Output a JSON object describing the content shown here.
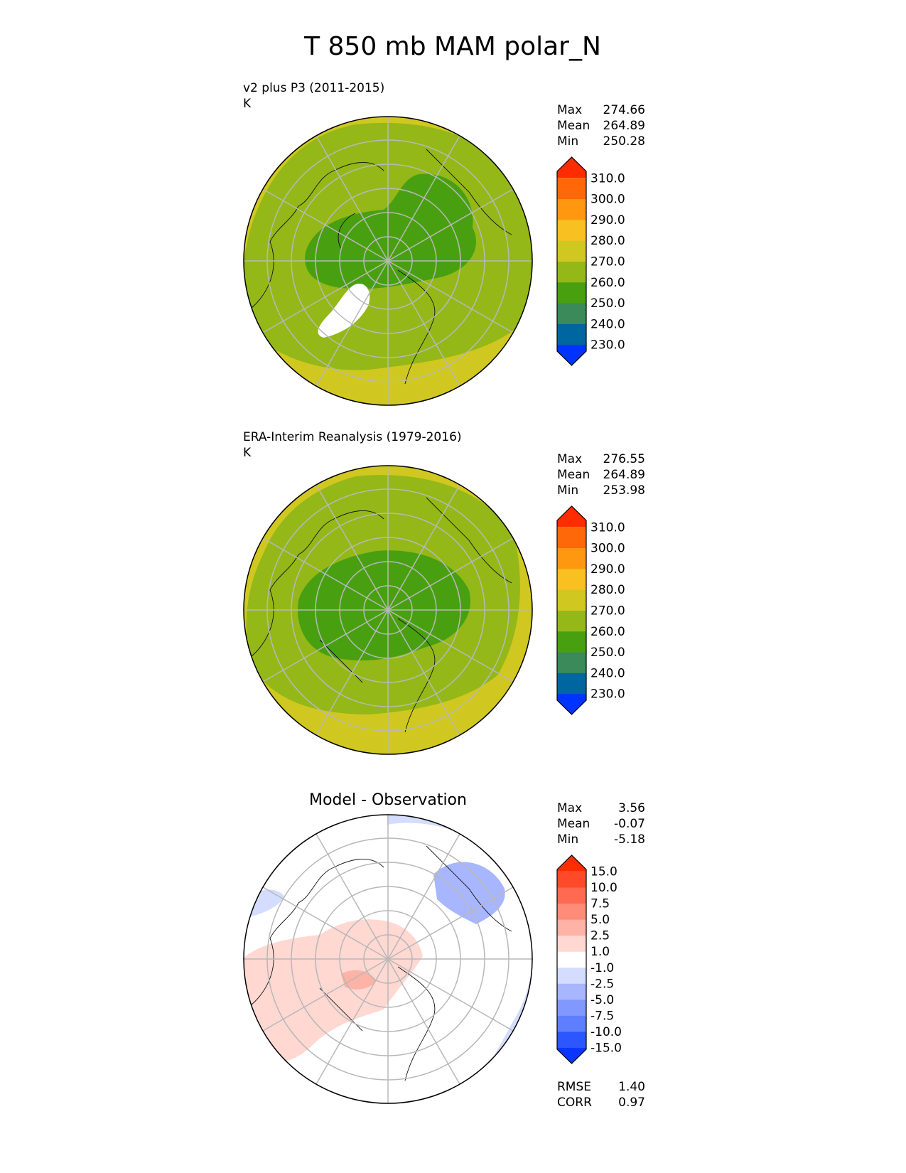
{
  "figure_title": "T 850 mb MAM polar_N",
  "chart_data": [
    {
      "type": "polar_contour_map",
      "projection": "north polar stereographic",
      "title_line1": "v2 plus P3 (2011-2015)",
      "title_line2": "K",
      "stats": [
        {
          "label": "Max",
          "value": "274.66"
        },
        {
          "label": "Mean",
          "value": "264.89"
        },
        {
          "label": "Min",
          "value": "250.28"
        }
      ],
      "colorbar": {
        "levels": [
          230,
          240,
          250,
          260,
          270,
          280,
          290,
          300,
          310
        ],
        "tick_labels": [
          "230.0",
          "240.0",
          "250.0",
          "260.0",
          "270.0",
          "280.0",
          "290.0",
          "300.0",
          "310.0"
        ],
        "colors": [
          "#0033ff",
          "#0066a0",
          "#3a8a5a",
          "#48a010",
          "#94b818",
          "#d0c820",
          "#f8c020",
          "#ff9810",
          "#ff6808",
          "#ff2c00"
        ],
        "extend": "both"
      }
    },
    {
      "type": "polar_contour_map",
      "projection": "north polar stereographic",
      "title_line1": "ERA-Interim Reanalysis (1979-2016)",
      "title_line2": "K",
      "stats": [
        {
          "label": "Max",
          "value": "276.55"
        },
        {
          "label": "Mean",
          "value": "264.89"
        },
        {
          "label": "Min",
          "value": "253.98"
        }
      ],
      "colorbar": {
        "levels": [
          230,
          240,
          250,
          260,
          270,
          280,
          290,
          300,
          310
        ],
        "tick_labels": [
          "230.0",
          "240.0",
          "250.0",
          "260.0",
          "270.0",
          "280.0",
          "290.0",
          "300.0",
          "310.0"
        ],
        "colors": [
          "#0033ff",
          "#0066a0",
          "#3a8a5a",
          "#48a010",
          "#94b818",
          "#d0c820",
          "#f8c020",
          "#ff9810",
          "#ff6808",
          "#ff2c00"
        ],
        "extend": "both"
      }
    },
    {
      "type": "polar_contour_map",
      "projection": "north polar stereographic",
      "title": "Model - Observation",
      "stats": [
        {
          "label": "Max",
          "value": "3.56"
        },
        {
          "label": "Mean",
          "value": "-0.07"
        },
        {
          "label": "Min",
          "value": "-5.18"
        }
      ],
      "colorbar": {
        "levels": [
          -15,
          -10,
          -7.5,
          -5,
          -2.5,
          -1,
          1,
          2.5,
          5,
          7.5,
          10,
          15
        ],
        "tick_labels": [
          "-15.0",
          "-10.0",
          "-7.5",
          "-5.0",
          "-2.5",
          "-1.0",
          "1.0",
          "2.5",
          "5.0",
          "7.5",
          "10.0",
          "15.0"
        ],
        "colors": [
          "#0a36ff",
          "#2c56ff",
          "#5c7eff",
          "#8098ff",
          "#a8b6ff",
          "#d4dcff",
          "#ffffff",
          "#ffd8d2",
          "#ffb2a6",
          "#ff8c78",
          "#ff6a50",
          "#ff4a2a",
          "#ff2c00"
        ],
        "extend": "both"
      },
      "metrics": [
        {
          "label": "RMSE",
          "value": "1.40"
        },
        {
          "label": "CORR",
          "value": "0.97"
        }
      ]
    }
  ]
}
